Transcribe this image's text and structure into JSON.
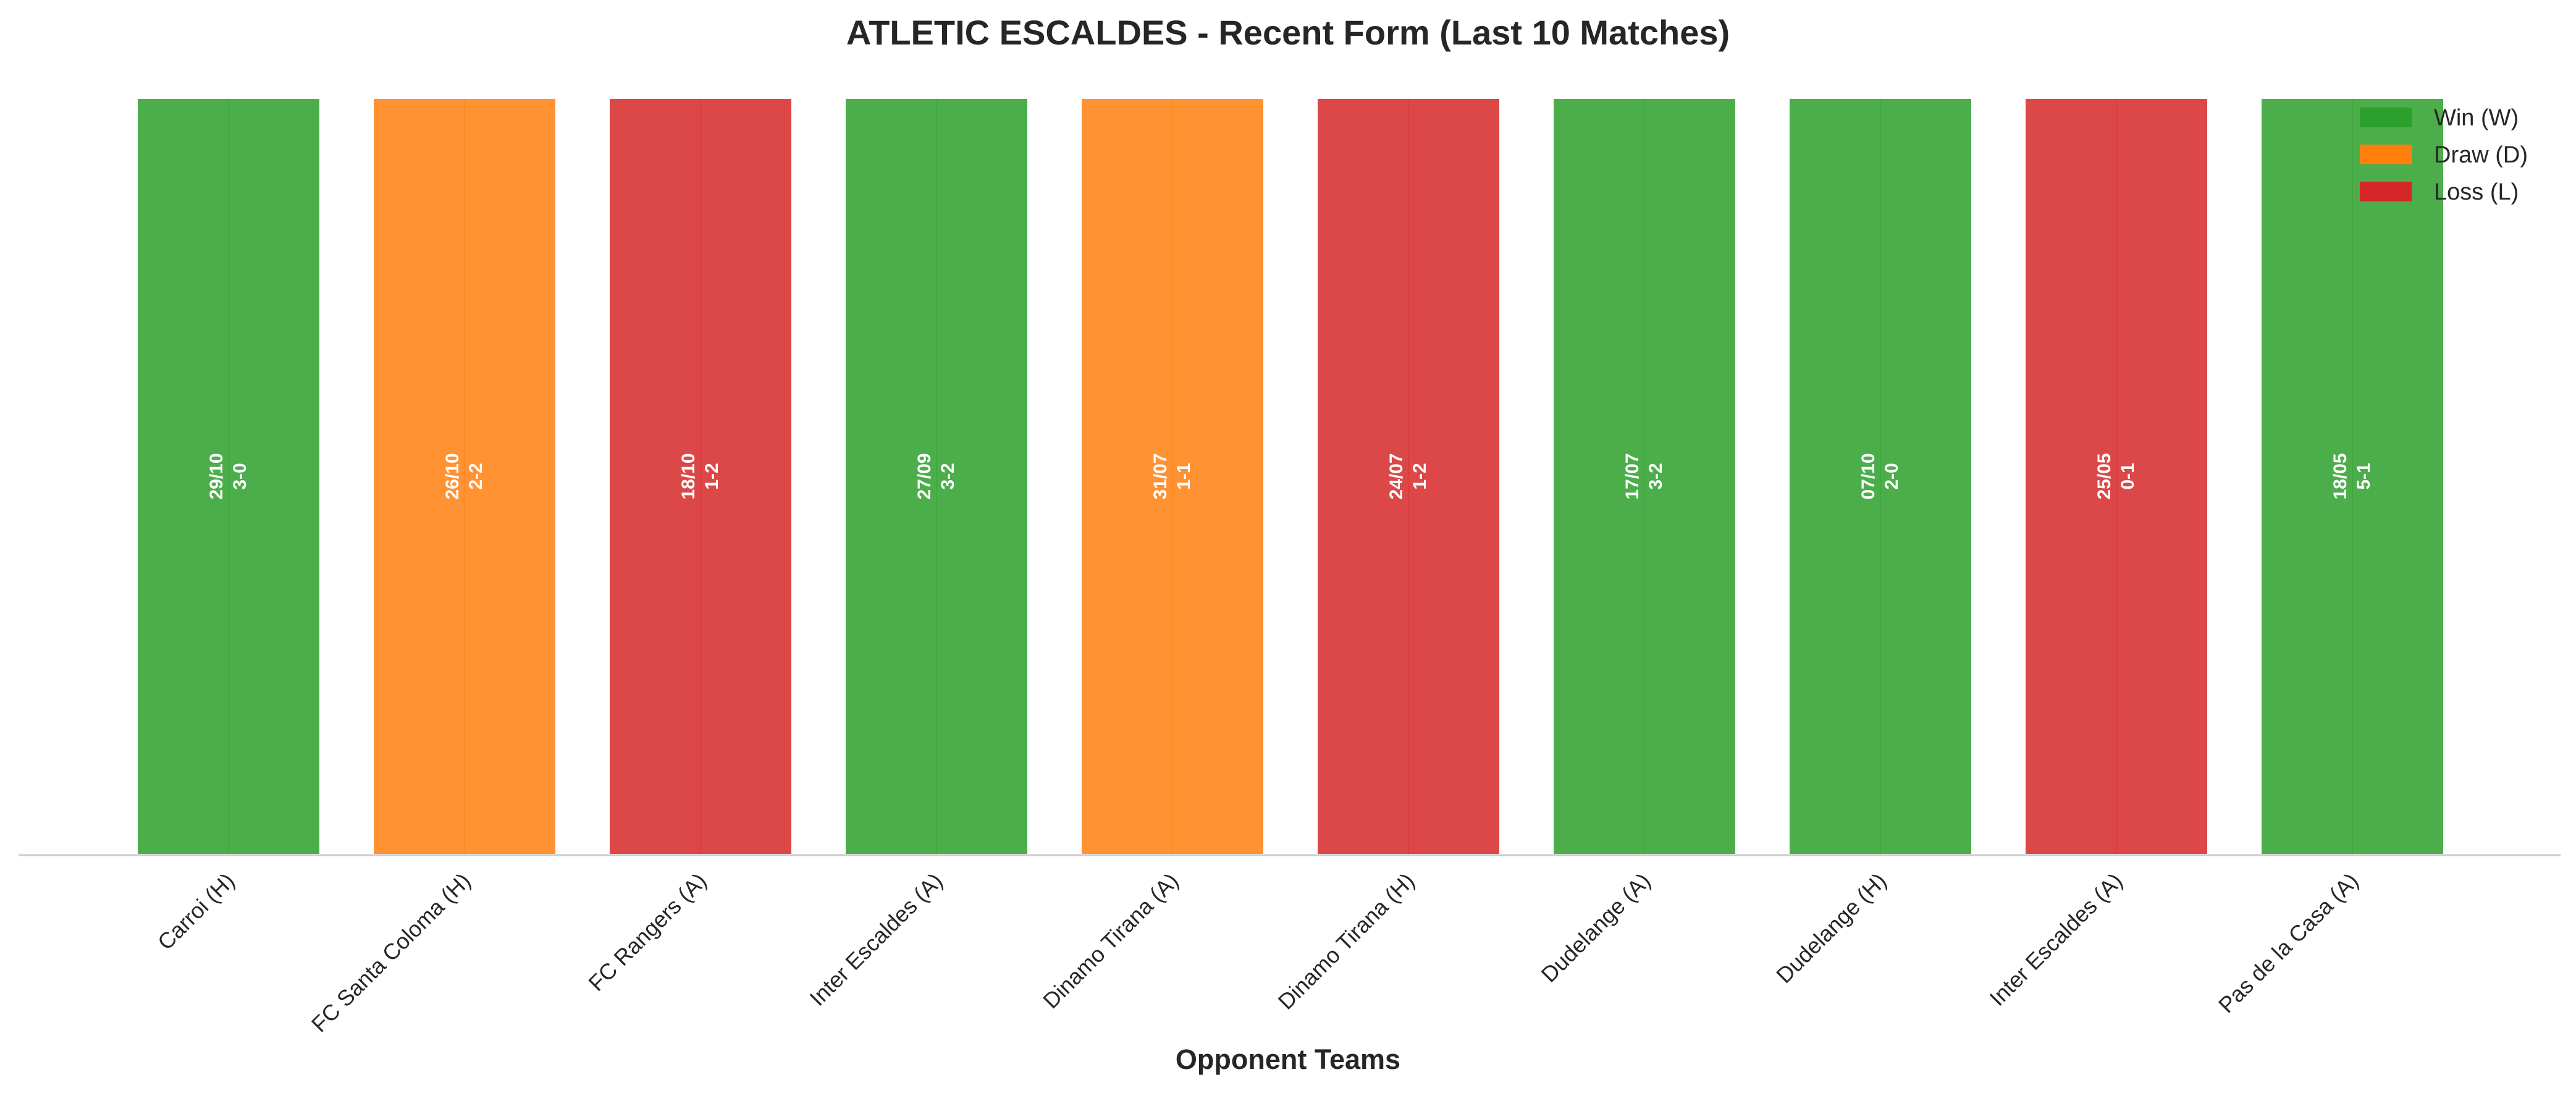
{
  "chart_data": {
    "type": "bar",
    "title": "ATLETIC ESCALDES - Recent Form (Last 10 Matches)",
    "xlabel": "Opponent Teams",
    "ylabel": "",
    "ylim": [
      0,
      1
    ],
    "grid": false,
    "legend_position": "top-right",
    "categories": [
      "Carroi (H)",
      "FC Santa Coloma (H)",
      "FC Rangers (A)",
      "Inter Escaldes (A)",
      "Dinamo Tirana (A)",
      "Dinamo Tirana (H)",
      "Dudelange (A)",
      "Dudelange (H)",
      "Inter Escaldes (A)",
      "Pas de la Casa (A)"
    ],
    "values": [
      1,
      1,
      1,
      1,
      1,
      1,
      1,
      1,
      1,
      1
    ],
    "results": [
      "W",
      "D",
      "L",
      "W",
      "D",
      "L",
      "W",
      "W",
      "L",
      "W"
    ],
    "dates": [
      "29/10",
      "26/10",
      "18/10",
      "27/09",
      "31/07",
      "24/07",
      "17/07",
      "07/10",
      "25/05",
      "18/05"
    ],
    "scores": [
      "3-0",
      "2-2",
      "1-2",
      "3-2",
      "1-1",
      "1-2",
      "3-2",
      "2-0",
      "0-1",
      "5-1"
    ],
    "legend": [
      {
        "key": "W",
        "label": "Win (W)",
        "color": "#2ca02c"
      },
      {
        "key": "D",
        "label": "Draw (D)",
        "color": "#ff7f0e"
      },
      {
        "key": "L",
        "label": "Loss (L)",
        "color": "#d62728"
      }
    ]
  }
}
